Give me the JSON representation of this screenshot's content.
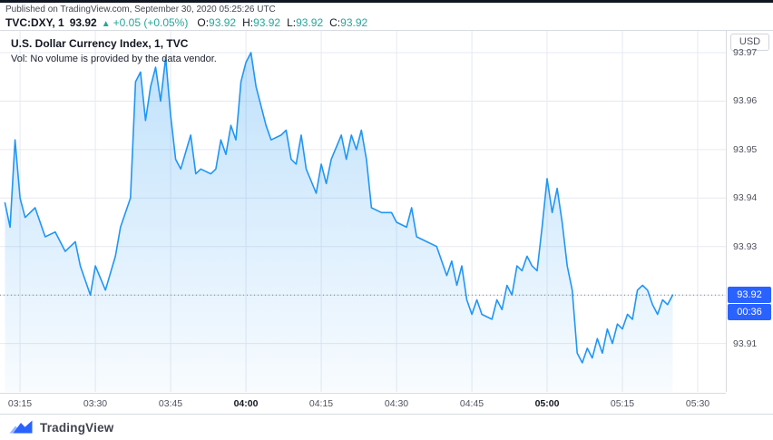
{
  "header": {
    "published_line": "Published on TradingView.com, September 30, 2020 05:25:26 UTC",
    "symbol": "TVC:DXY, 1",
    "last_price": "93.92",
    "change_arrow": "▲",
    "change": "+0.05 (+0.05%)",
    "ohlc": [
      {
        "label": "O:",
        "value": "93.92"
      },
      {
        "label": "H:",
        "value": "93.92"
      },
      {
        "label": "L:",
        "value": "93.92"
      },
      {
        "label": "C:",
        "value": "93.92"
      }
    ]
  },
  "chart_legend": {
    "title": "U.S. Dollar Currency Index, 1, TVC",
    "volume_note": "Vol: No volume is provided by the data vendor."
  },
  "axis": {
    "currency_button": "USD",
    "price_label": "93.92",
    "countdown": "00:36"
  },
  "footer": {
    "brand": "TradingView"
  },
  "colors": {
    "accent_blue": "#2196f3",
    "badge_blue": "#2962ff",
    "up_green": "#26a69a",
    "grid": "#e6e9f0",
    "axis_text": "#50535e"
  },
  "chart_data": {
    "type": "area",
    "title": "U.S. Dollar Currency Index, 1, TVC",
    "symbol": "TVC:DXY",
    "interval": "1",
    "current_price": 93.92,
    "open": 93.92,
    "high": 93.92,
    "low": 93.92,
    "close": 93.92,
    "change": 0.05,
    "change_pct": 0.05,
    "ylim": [
      93.9,
      93.9745
    ],
    "xlim_minutes": [
      191,
      335.6
    ],
    "y_ticks": [
      93.91,
      93.92,
      93.93,
      93.94,
      93.95,
      93.96,
      93.97
    ],
    "x_ticks": [
      {
        "label": "03:15",
        "bold": false
      },
      {
        "label": "03:30",
        "bold": false
      },
      {
        "label": "03:45",
        "bold": false
      },
      {
        "label": "04:00",
        "bold": true
      },
      {
        "label": "04:15",
        "bold": false
      },
      {
        "label": "04:30",
        "bold": false
      },
      {
        "label": "04:45",
        "bold": false
      },
      {
        "label": "05:00",
        "bold": true
      },
      {
        "label": "05:15",
        "bold": false
      },
      {
        "label": "05:30",
        "bold": false
      }
    ],
    "line_color": "#2196f3",
    "area_top": "rgba(33,150,243,0.30)",
    "area_bottom": "rgba(33,150,243,0.03)",
    "grid_color": "#e6e9f0",
    "price_line_color": "#758696",
    "times": [
      "03:12",
      "03:13",
      "03:14",
      "03:15",
      "03:16",
      "03:18",
      "03:20",
      "03:22",
      "03:24",
      "03:26",
      "03:27",
      "03:29",
      "03:30",
      "03:32",
      "03:34",
      "03:35",
      "03:37",
      "03:38",
      "03:39",
      "03:40",
      "03:41",
      "03:42",
      "03:43",
      "03:44",
      "03:45",
      "03:46",
      "03:47",
      "03:49",
      "03:50",
      "03:51",
      "03:53",
      "03:54",
      "03:55",
      "03:56",
      "03:57",
      "03:58",
      "03:59",
      "04:00",
      "04:01",
      "04:02",
      "04:04",
      "04:05",
      "04:07",
      "04:08",
      "04:09",
      "04:10",
      "04:11",
      "04:12",
      "04:14",
      "04:15",
      "04:16",
      "04:17",
      "04:19",
      "04:20",
      "04:21",
      "04:22",
      "04:23",
      "04:24",
      "04:25",
      "04:27",
      "04:29",
      "04:30",
      "04:32",
      "04:33",
      "04:34",
      "04:36",
      "04:38",
      "04:40",
      "04:41",
      "04:42",
      "04:43",
      "04:44",
      "04:45",
      "04:46",
      "04:47",
      "04:49",
      "04:50",
      "04:51",
      "04:52",
      "04:53",
      "04:54",
      "04:55",
      "04:56",
      "04:57",
      "04:58",
      "04:59",
      "05:00",
      "05:01",
      "05:02",
      "05:03",
      "05:04",
      "05:05",
      "05:06",
      "05:07",
      "05:08",
      "05:09",
      "05:10",
      "05:11",
      "05:12",
      "05:13",
      "05:14",
      "05:15",
      "05:16",
      "05:17",
      "05:18",
      "05:19",
      "05:20",
      "05:21",
      "05:22",
      "05:23",
      "05:24",
      "05:25"
    ],
    "values": [
      93.939,
      93.934,
      93.952,
      93.94,
      93.936,
      93.938,
      93.932,
      93.933,
      93.929,
      93.931,
      93.926,
      93.92,
      93.926,
      93.921,
      93.928,
      93.934,
      93.94,
      93.964,
      93.966,
      93.956,
      93.963,
      93.967,
      93.96,
      93.969,
      93.957,
      93.948,
      93.946,
      93.953,
      93.945,
      93.946,
      93.945,
      93.946,
      93.952,
      93.949,
      93.955,
      93.952,
      93.964,
      93.968,
      93.97,
      93.963,
      93.955,
      93.952,
      93.953,
      93.954,
      93.948,
      93.947,
      93.953,
      93.946,
      93.941,
      93.947,
      93.943,
      93.948,
      93.953,
      93.948,
      93.953,
      93.95,
      93.954,
      93.948,
      93.938,
      93.937,
      93.937,
      93.935,
      93.934,
      93.938,
      93.932,
      93.931,
      93.93,
      93.924,
      93.927,
      93.922,
      93.926,
      93.919,
      93.916,
      93.919,
      93.916,
      93.915,
      93.919,
      93.917,
      93.922,
      93.92,
      93.926,
      93.925,
      93.928,
      93.926,
      93.925,
      93.934,
      93.944,
      93.937,
      93.942,
      93.935,
      93.926,
      93.921,
      93.908,
      93.906,
      93.909,
      93.907,
      93.911,
      93.908,
      93.913,
      93.91,
      93.914,
      93.913,
      93.916,
      93.915,
      93.921,
      93.922,
      93.921,
      93.918,
      93.916,
      93.919,
      93.918,
      93.92
    ]
  }
}
